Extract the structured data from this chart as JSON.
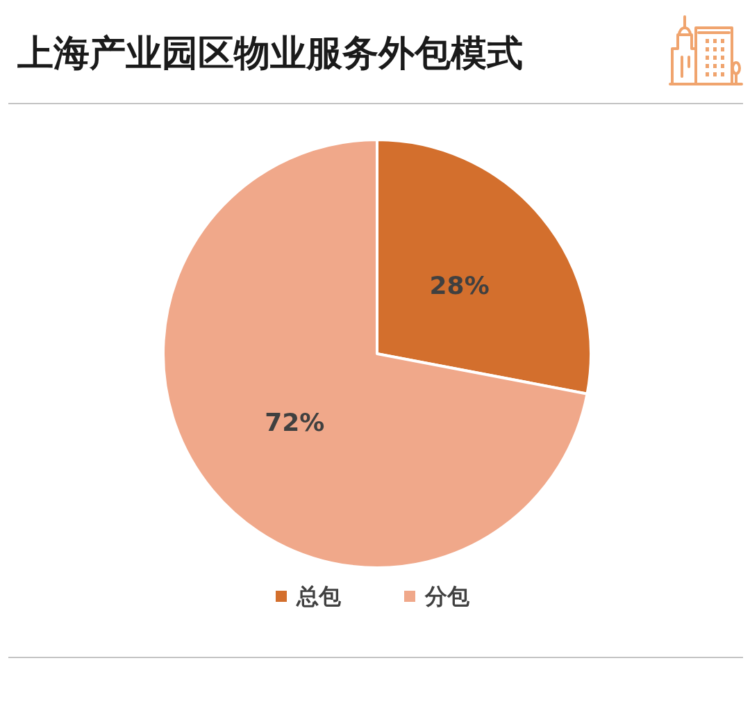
{
  "chart_data": {
    "type": "pie",
    "title": "上海产业园区物业服务外包模式",
    "categories": [
      "总包",
      "分包"
    ],
    "values": [
      28,
      72
    ],
    "colors": [
      "#d36f2d",
      "#f0a88a"
    ],
    "value_labels": [
      "28%",
      "72%"
    ],
    "legend": "bottom"
  }
}
